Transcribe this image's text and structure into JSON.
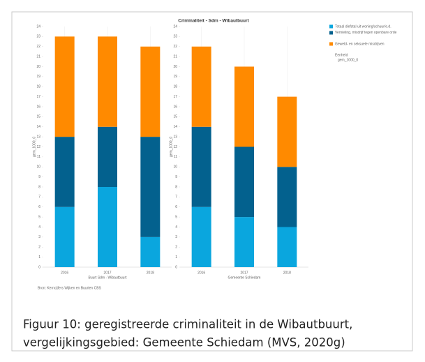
{
  "title": "Criminaliteit - Sdm - Wibautbuurt",
  "legend_heading": "Eenheid",
  "legend_unit": "gem_1000_0",
  "source": "Bron: Kerncijfers Wijken en Buurten CBS",
  "caption": [
    "Figuur 10: geregistreerde criminaliteit in de Wibautbuurt,",
    "vergelijkingsgebied: Gemeente Schiedam (MVS, 2020g)"
  ],
  "chart_data": [
    {
      "type": "stacked_bar",
      "x_label": "Buurt Sdm - Wibautbuurt",
      "y_label": "gem_1000_0",
      "categories": [
        "2016",
        "2017",
        "2018"
      ],
      "series": [
        {
          "name": "Totaal diefstal uit woning/schuur/e.d.",
          "color": "#0aa6de",
          "values": [
            6,
            8,
            3
          ]
        },
        {
          "name": "Vernieling, misdrijf tegen openbare orde",
          "color": "#03618e",
          "values": [
            7,
            6,
            10
          ]
        },
        {
          "name": "Geweld- en seksuele misdrijven",
          "color": "#ff8a00",
          "values": [
            10,
            9,
            9
          ]
        }
      ],
      "ylim": [
        0,
        24
      ],
      "yticks": [
        0,
        1,
        2,
        3,
        4,
        5,
        6,
        7,
        8,
        9,
        10,
        11,
        12,
        13,
        14,
        15,
        16,
        17,
        18,
        19,
        20,
        21,
        22,
        23,
        24
      ]
    },
    {
      "type": "stacked_bar",
      "x_label": "Gemeente Schiedam",
      "y_label": "gem_1000_0",
      "categories": [
        "2016",
        "2017",
        "2018"
      ],
      "series": [
        {
          "values": [
            6,
            5,
            4
          ]
        },
        {
          "values": [
            8,
            7,
            6
          ]
        },
        {
          "values": [
            8,
            8,
            7
          ]
        }
      ],
      "ylim": [
        0,
        24
      ],
      "yticks": [
        0,
        1,
        2,
        3,
        4,
        5,
        6,
        7,
        8,
        9,
        10,
        11,
        12,
        13,
        14,
        15,
        16,
        17,
        18,
        19,
        20,
        21,
        22,
        23,
        24
      ]
    }
  ]
}
